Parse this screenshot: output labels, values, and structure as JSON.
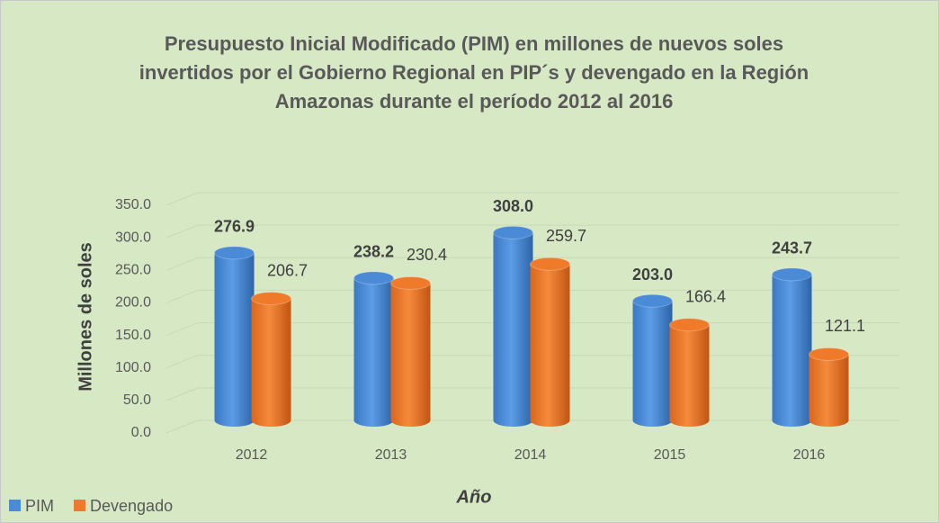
{
  "chart_data": {
    "type": "bar3d",
    "title": [
      "Presupuesto Inicial Modificado (PIM) en millones de nuevos soles",
      "invertidos por el Gobierno Regional en PIP´s y devengado en la Región",
      "Amazonas durante el período  2012 al 2016"
    ],
    "x_label": "Año",
    "y_label": "Millones de soles",
    "categories": [
      "2012",
      "2013",
      "2014",
      "2015",
      "2016"
    ],
    "series": [
      {
        "name": "PIM",
        "color": "#4a8ad6",
        "values": [
          276.9,
          238.2,
          308.0,
          203.0,
          243.7
        ],
        "value_labels": [
          "276.9",
          "238.2",
          "308.0",
          "203.0",
          "243.7"
        ]
      },
      {
        "name": "Devengado",
        "color": "#ef7a2a",
        "values": [
          206.7,
          230.4,
          259.7,
          166.4,
          121.1
        ],
        "value_labels": [
          "206.7",
          "230.4",
          "259.7",
          "166.4",
          "121.1"
        ]
      }
    ],
    "ylim": [
      0,
      350
    ],
    "yticks": [
      {
        "value": 0,
        "label": "0.0"
      },
      {
        "value": 50,
        "label": "50.0"
      },
      {
        "value": 100,
        "label": "100.0"
      },
      {
        "value": 150,
        "label": "150.0"
      },
      {
        "value": 200,
        "label": "200.0"
      },
      {
        "value": 250,
        "label": "250.0"
      },
      {
        "value": 300,
        "label": "300.0"
      },
      {
        "value": 350,
        "label": "350.0"
      }
    ],
    "grid": true,
    "legend": "bottom-left"
  }
}
